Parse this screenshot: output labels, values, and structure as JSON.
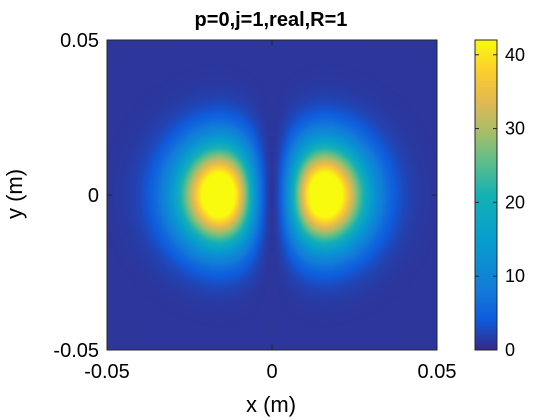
{
  "chart_data": {
    "type": "heatmap",
    "title": "p=0,j=1,real,R=1",
    "xlabel": "x (m)",
    "ylabel": "y (m)",
    "xlim": [
      -0.05,
      0.05
    ],
    "ylim": [
      -0.05,
      0.05
    ],
    "xticks": [
      {
        "value": -0.05,
        "label": "-0.05"
      },
      {
        "value": 0,
        "label": "0"
      },
      {
        "value": 0.05,
        "label": "0.05"
      }
    ],
    "yticks": [
      {
        "value": 0.05,
        "label": "0.05"
      },
      {
        "value": 0,
        "label": "0"
      },
      {
        "value": -0.05,
        "label": "-0.05"
      }
    ],
    "colorbar": {
      "range": [
        0,
        42
      ],
      "ticks": [
        {
          "value": 0,
          "label": "0"
        },
        {
          "value": 10,
          "label": "10"
        },
        {
          "value": 20,
          "label": "20"
        },
        {
          "value": 30,
          "label": "30"
        },
        {
          "value": 40,
          "label": "40"
        }
      ],
      "colormap": "parula"
    },
    "peaks": [
      {
        "x": -0.011,
        "y": 0,
        "value": 41
      },
      {
        "x": 0.011,
        "y": 0,
        "value": 41
      }
    ],
    "field": {
      "background_value": 1,
      "gaussian_width": 0.016
    },
    "colors": {
      "min": "#352a87",
      "mid": "#0fbab5",
      "max": "#f9fb0e"
    }
  }
}
